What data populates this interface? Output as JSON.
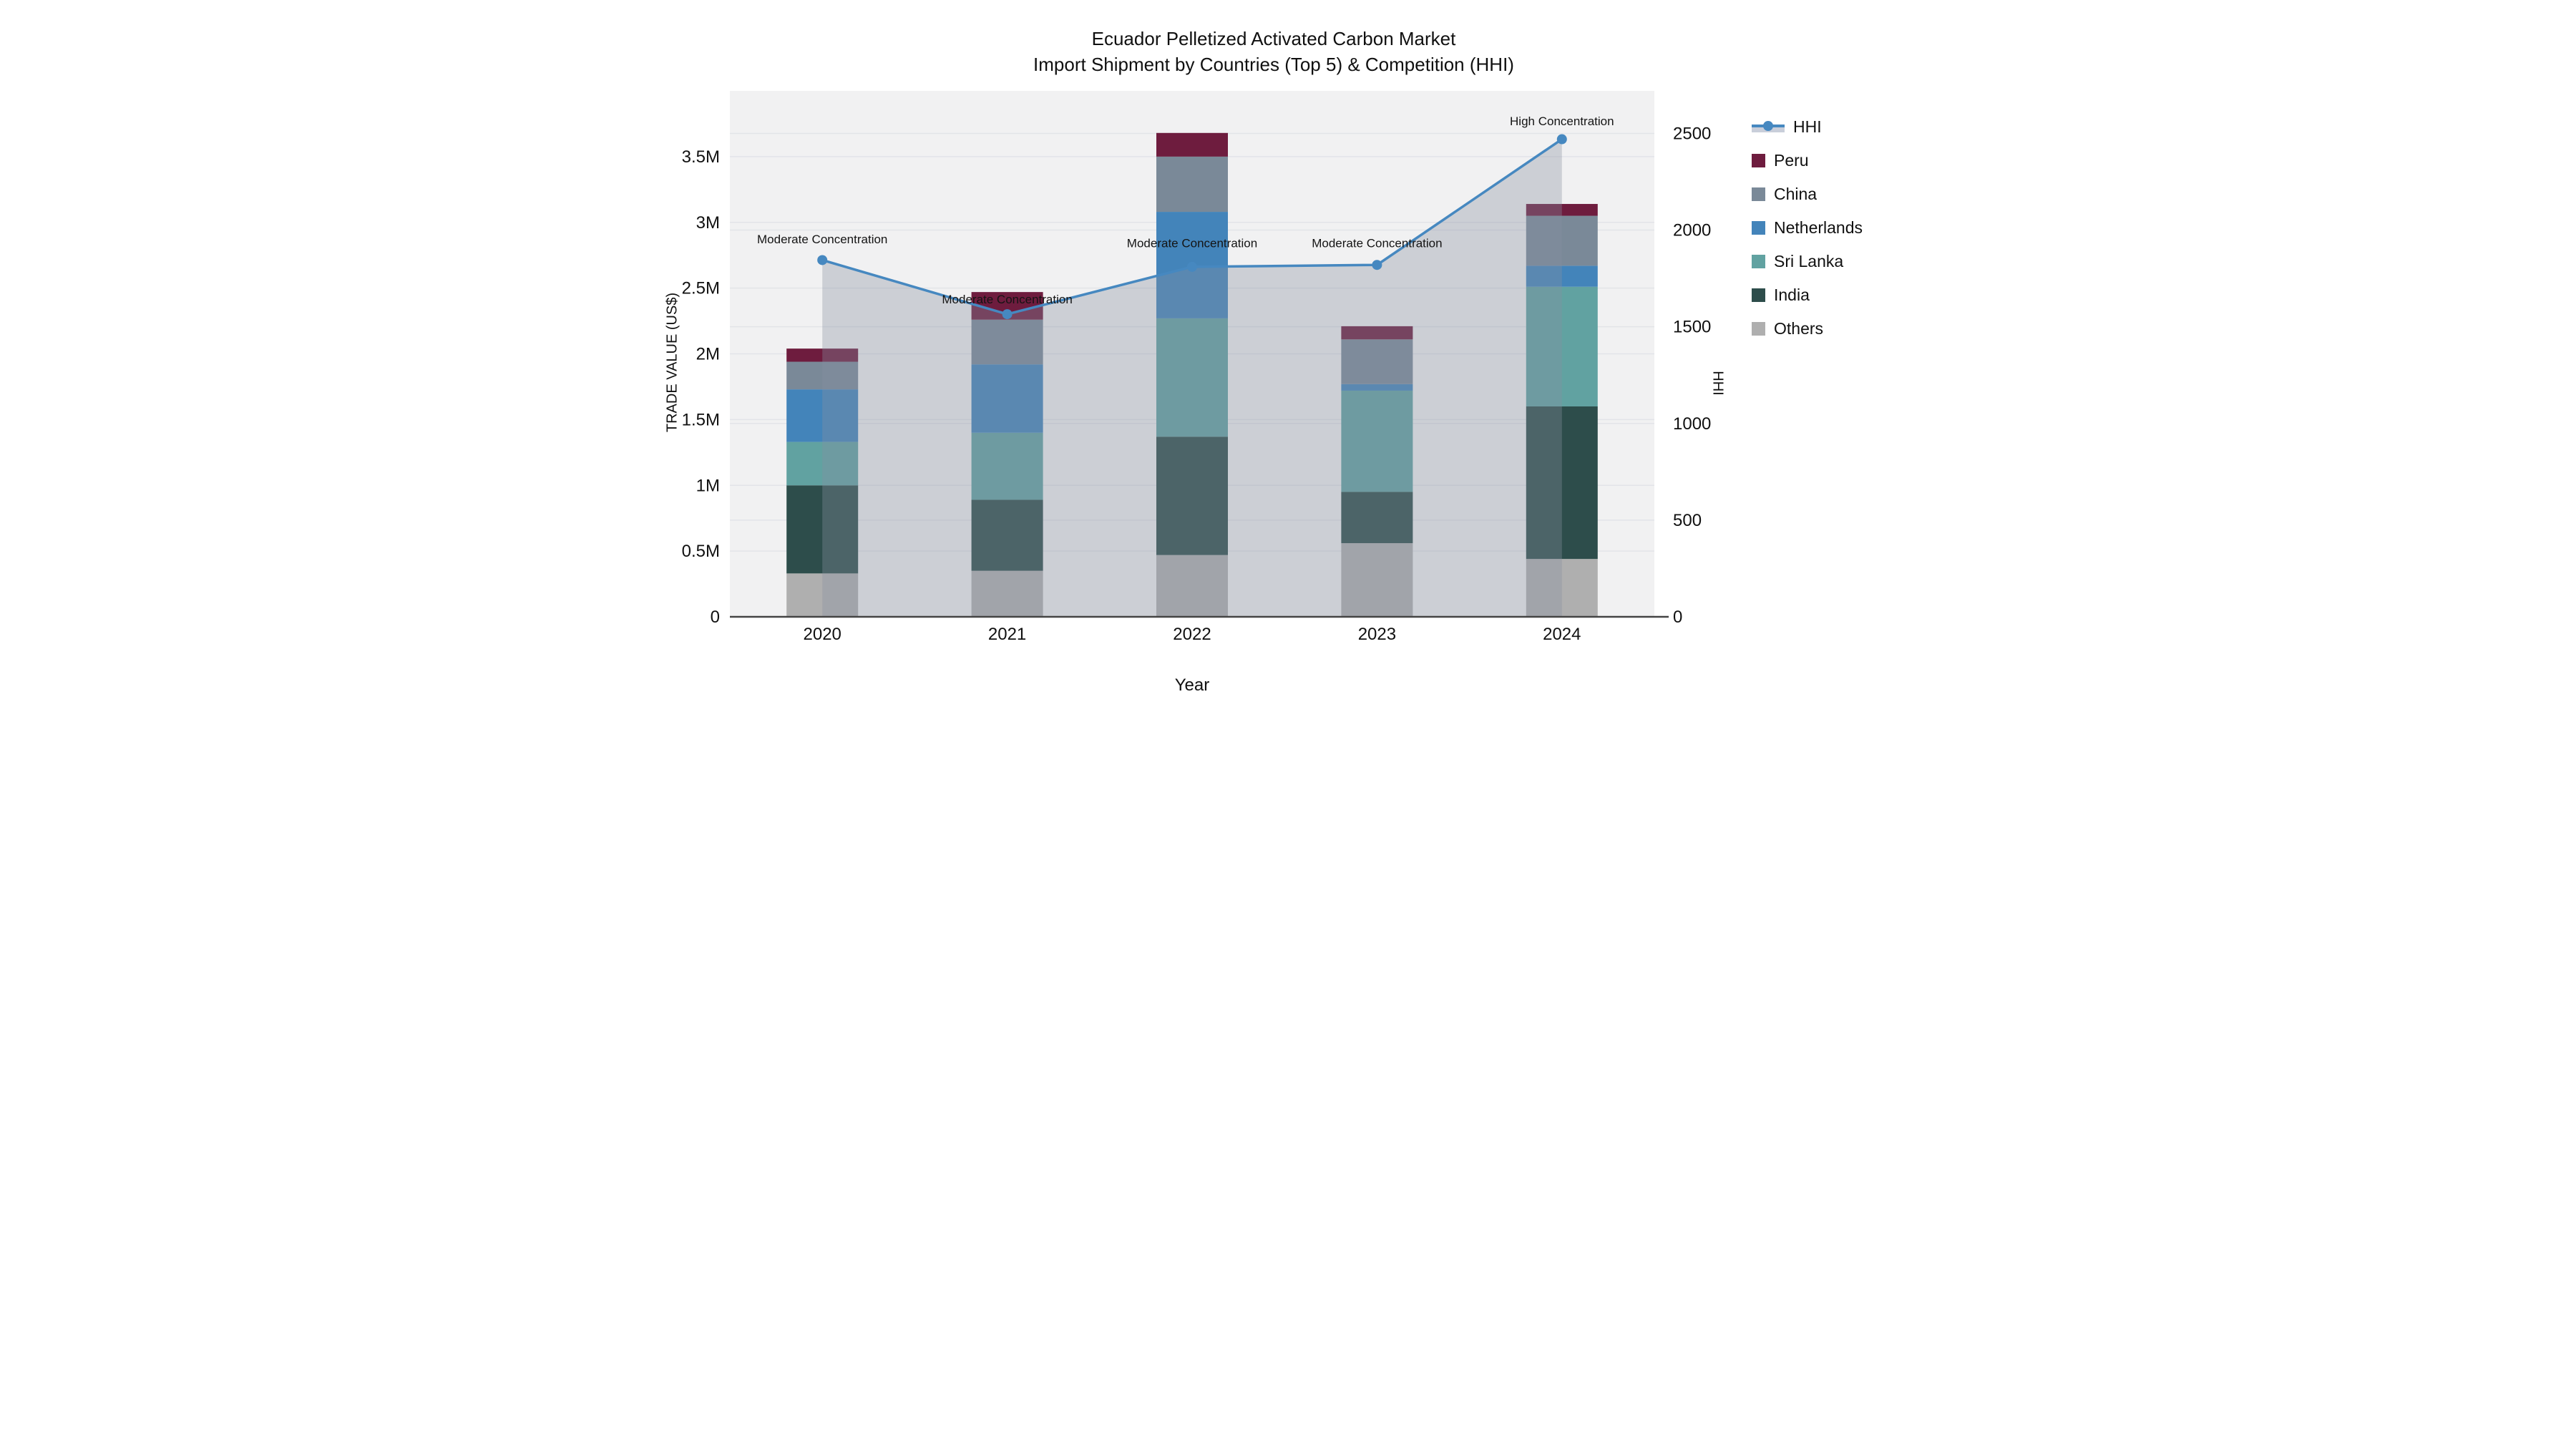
{
  "title": {
    "line1": "Ecuador Pelletized Activated Carbon Market",
    "line2": "Import Shipment by Countries (Top 5) & Competition (HHI)"
  },
  "axes": {
    "x": {
      "title": "Year",
      "ticks": [
        "2020",
        "2021",
        "2022",
        "2023",
        "2024"
      ]
    },
    "y_left": {
      "title": "TRADE VALUE (US$)",
      "ticks": [
        "0",
        "0.5M",
        "1M",
        "1.5M",
        "2M",
        "2.5M",
        "3M",
        "3.5M"
      ],
      "tick_values": [
        0,
        500000,
        1000000,
        1500000,
        2000000,
        2500000,
        3000000,
        3500000
      ],
      "range": [
        0,
        4000000
      ]
    },
    "y_right": {
      "title": "HHI",
      "ticks": [
        "0",
        "500",
        "1000",
        "1500",
        "2000",
        "2500"
      ],
      "tick_values": [
        0,
        500,
        1000,
        1500,
        2000,
        2500
      ],
      "range": [
        0,
        2720
      ]
    }
  },
  "legend": {
    "position": "right",
    "items": [
      {
        "key": "hhi",
        "label": "HHI",
        "color": "#4688C0",
        "type": "line"
      },
      {
        "key": "peru",
        "label": "Peru",
        "color": "#6E1C3E",
        "type": "square"
      },
      {
        "key": "china",
        "label": "China",
        "color": "#7A8998",
        "type": "square"
      },
      {
        "key": "netherlands",
        "label": "Netherlands",
        "color": "#4384BA",
        "type": "square"
      },
      {
        "key": "sri-lanka",
        "label": "Sri Lanka",
        "color": "#61A2A1",
        "type": "square"
      },
      {
        "key": "india",
        "label": "India",
        "color": "#2D4D4B",
        "type": "square"
      },
      {
        "key": "others",
        "label": "Others",
        "color": "#AFAFAF",
        "type": "square"
      }
    ]
  },
  "colors": {
    "plot_bg": "#F1F1F2",
    "gridline": "#E2E4E8",
    "axis_line": "#444444",
    "text": "#101010",
    "hhi_line": "#4688C0",
    "area_fill": "rgba(135,143,160,0.35)"
  },
  "chart_data": [
    {
      "type": "bar",
      "stacked": true,
      "categories": [
        "2020",
        "2021",
        "2022",
        "2023",
        "2024"
      ],
      "stack_order": [
        "Others",
        "India",
        "Sri Lanka",
        "Netherlands",
        "China",
        "Peru"
      ],
      "series": [
        {
          "name": "Peru",
          "color": "#6E1C3E",
          "values": [
            100000,
            210000,
            180000,
            100000,
            90000
          ]
        },
        {
          "name": "China",
          "color": "#7A8998",
          "values": [
            210000,
            340000,
            420000,
            340000,
            380000
          ]
        },
        {
          "name": "Netherlands",
          "color": "#4384BA",
          "values": [
            400000,
            520000,
            810000,
            50000,
            160000
          ]
        },
        {
          "name": "Sri Lanka",
          "color": "#61A2A1",
          "values": [
            330000,
            510000,
            900000,
            770000,
            910000
          ]
        },
        {
          "name": "India",
          "color": "#2D4D4B",
          "values": [
            670000,
            540000,
            900000,
            390000,
            1160000
          ]
        },
        {
          "name": "Others",
          "color": "#AFAFAF",
          "values": [
            330000,
            350000,
            470000,
            560000,
            440000
          ]
        }
      ],
      "xlabel": "Year",
      "ylabel": "TRADE VALUE (US$)",
      "ylim": [
        0,
        4000000
      ],
      "bar_totals": [
        2040000,
        2470000,
        3680000,
        2210000,
        3140000
      ],
      "grid": true
    },
    {
      "type": "line",
      "name": "HHI",
      "x": [
        "2020",
        "2021",
        "2022",
        "2023",
        "2024"
      ],
      "values": [
        1845,
        1565,
        1810,
        1820,
        2470
      ],
      "axis": "right",
      "ylabel": "HHI",
      "ylim": [
        0,
        2720
      ],
      "area_fill": true,
      "marker": "circle",
      "annotations": [
        {
          "x": "2020",
          "y": 1950,
          "text": "Moderate Concentration"
        },
        {
          "x": "2021",
          "y": 1640,
          "text": "Moderate Concentration"
        },
        {
          "x": "2022",
          "y": 1930,
          "text": "Moderate Concentration"
        },
        {
          "x": "2023",
          "y": 1930,
          "text": "Moderate Concentration"
        },
        {
          "x": "2024",
          "y": 2560,
          "text": "High Concentration"
        }
      ]
    }
  ]
}
